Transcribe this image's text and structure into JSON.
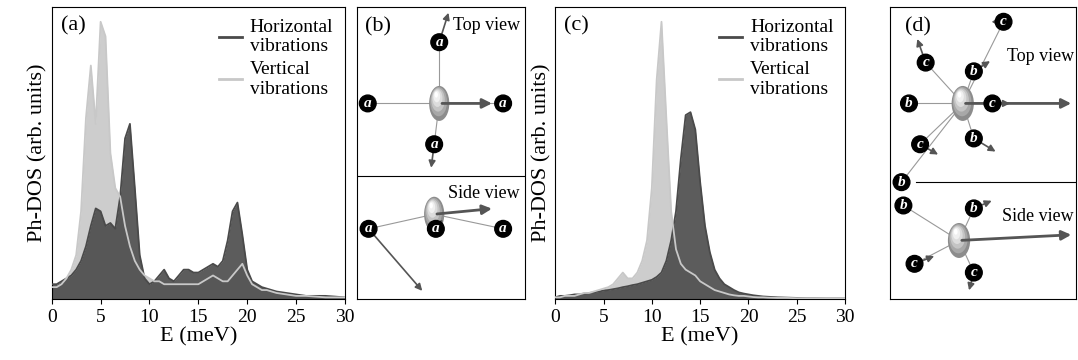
{
  "chart_data": [
    {
      "type": "area",
      "annotations": [
        "(a)"
      ],
      "x_label": "E (meV)",
      "y_label": "Ph-DOS (arb. units)",
      "x": [
        0,
        0.5,
        1,
        1.5,
        2,
        2.5,
        3,
        3.5,
        4,
        4.5,
        5,
        5.5,
        6,
        6.5,
        7,
        7.5,
        8,
        8.5,
        9,
        9.5,
        10,
        10.5,
        11,
        11.5,
        12,
        12.5,
        13,
        13.5,
        14,
        14.5,
        15,
        15.5,
        16,
        16.5,
        17,
        17.5,
        18,
        18.5,
        19,
        19.5,
        20,
        20.5,
        21,
        21.5,
        22,
        23,
        24,
        25,
        26,
        28,
        30
      ],
      "series": [
        {
          "name": "Horizontal\nvibrations",
          "color": "#4a4a4a",
          "values": [
            0.05,
            0.05,
            0.06,
            0.07,
            0.08,
            0.1,
            0.13,
            0.18,
            0.25,
            0.31,
            0.3,
            0.25,
            0.26,
            0.24,
            0.35,
            0.55,
            0.6,
            0.38,
            0.15,
            0.07,
            0.05,
            0.06,
            0.08,
            0.1,
            0.07,
            0.06,
            0.08,
            0.1,
            0.1,
            0.09,
            0.09,
            0.1,
            0.11,
            0.12,
            0.11,
            0.13,
            0.2,
            0.3,
            0.33,
            0.22,
            0.1,
            0.06,
            0.05,
            0.04,
            0.035,
            0.025,
            0.02,
            0.015,
            0.01,
            0.01,
            0.005
          ]
        },
        {
          "name": "Vertical\nvibrations",
          "color": "#c8c8c8",
          "values": [
            0.04,
            0.04,
            0.05,
            0.07,
            0.1,
            0.15,
            0.3,
            0.62,
            0.8,
            0.6,
            0.95,
            0.9,
            0.5,
            0.38,
            0.35,
            0.25,
            0.18,
            0.13,
            0.1,
            0.08,
            0.07,
            0.06,
            0.06,
            0.05,
            0.05,
            0.05,
            0.05,
            0.05,
            0.05,
            0.05,
            0.05,
            0.06,
            0.07,
            0.08,
            0.07,
            0.06,
            0.06,
            0.08,
            0.1,
            0.12,
            0.08,
            0.05,
            0.04,
            0.03,
            0.03,
            0.02,
            0.015,
            0.01,
            0.01,
            0.005,
            0.005
          ]
        }
      ],
      "xlim": [
        0,
        30
      ],
      "xticks": [
        0,
        5,
        10,
        15,
        20,
        25,
        30
      ],
      "ylim": [
        0,
        1
      ],
      "tick_labels": "x",
      "legend": "upper right"
    },
    {
      "type": "area",
      "annotations": [
        "(c)"
      ],
      "x_label": "E (meV)",
      "y_label": "Ph-DOS (arb. units)",
      "x": [
        0,
        0.5,
        1,
        1.5,
        2,
        2.5,
        3,
        3.5,
        4,
        4.5,
        5,
        5.5,
        6,
        6.5,
        7,
        7.5,
        8,
        8.5,
        9,
        9.5,
        10,
        10.5,
        11,
        11.5,
        12,
        12.5,
        13,
        13.5,
        14,
        14.5,
        15,
        15.5,
        16,
        16.5,
        17,
        17.5,
        18,
        18.5,
        19,
        19.5,
        20,
        20.5,
        21,
        21.5,
        22,
        23,
        24,
        25,
        26,
        28,
        30
      ],
      "series": [
        {
          "name": "Horizontal\nvibrations",
          "color": "#4a4a4a",
          "values": [
            0.005,
            0.01,
            0.01,
            0.012,
            0.015,
            0.015,
            0.018,
            0.02,
            0.022,
            0.025,
            0.028,
            0.03,
            0.033,
            0.036,
            0.04,
            0.043,
            0.047,
            0.05,
            0.055,
            0.06,
            0.065,
            0.075,
            0.09,
            0.13,
            0.2,
            0.3,
            0.48,
            0.63,
            0.64,
            0.58,
            0.4,
            0.25,
            0.16,
            0.1,
            0.07,
            0.05,
            0.04,
            0.03,
            0.022,
            0.018,
            0.015,
            0.012,
            0.01,
            0.008,
            0.007,
            0.005,
            0.004,
            0.003,
            0.002,
            0.001,
            0.001
          ]
        },
        {
          "name": "Vertical\nvibrations",
          "color": "#c8c8c8",
          "values": [
            0.005,
            0.005,
            0.01,
            0.01,
            0.01,
            0.015,
            0.02,
            0.02,
            0.025,
            0.03,
            0.035,
            0.04,
            0.05,
            0.07,
            0.09,
            0.07,
            0.07,
            0.09,
            0.13,
            0.2,
            0.38,
            0.75,
            0.95,
            0.62,
            0.3,
            0.17,
            0.12,
            0.1,
            0.09,
            0.08,
            0.06,
            0.05,
            0.04,
            0.03,
            0.025,
            0.02,
            0.015,
            0.012,
            0.01,
            0.01,
            0.008,
            0.006,
            0.005,
            0.005,
            0.004,
            0.003,
            0.003,
            0.002,
            0.002,
            0.001,
            0.001
          ]
        }
      ],
      "xlim": [
        0,
        30
      ],
      "xticks": [
        0,
        5,
        10,
        15,
        20,
        25,
        30
      ],
      "ylim": [
        0,
        1
      ],
      "tick_labels": "x",
      "legend": "upper right"
    }
  ],
  "diagrams": [
    {
      "label": "(b)",
      "top_view": {
        "title": "Top view",
        "atoms": [
          "a",
          "a",
          "a",
          "a"
        ]
      },
      "side_view": {
        "title": "Side view",
        "atoms": [
          "a",
          "a",
          "a"
        ]
      }
    },
    {
      "label": "(d)",
      "top_view": {
        "title": "Top view",
        "atoms": [
          "c",
          "c",
          "b",
          "b",
          "c",
          "c",
          "b",
          "b"
        ]
      },
      "side_view": {
        "title": "Side view",
        "atoms": [
          "b",
          "b",
          "c",
          "c"
        ]
      }
    }
  ]
}
